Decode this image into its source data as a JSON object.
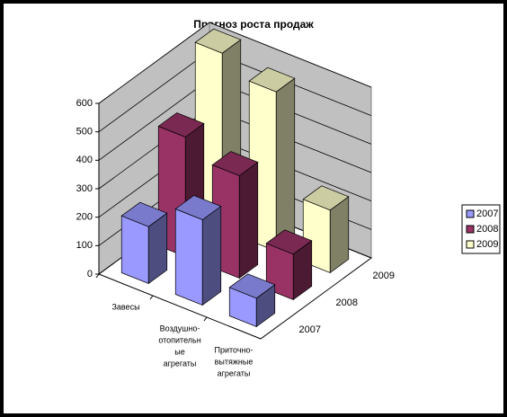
{
  "chart_data": {
    "type": "bar3d",
    "title": "Прогноз роста продаж",
    "categories": [
      [
        "Завесы"
      ],
      [
        "Воздушно-",
        "отопительн",
        "ые",
        "агрегаты"
      ],
      [
        "Приточно-",
        "вытяжные",
        "агрегаты"
      ]
    ],
    "series": [
      {
        "name": "2007",
        "color": "#9999ff",
        "values": [
          200,
          300,
          100
        ]
      },
      {
        "name": "2008",
        "color": "#993366",
        "values": [
          420,
          360,
          160
        ]
      },
      {
        "name": "2009",
        "color": "#ffffcc",
        "values": [
          620,
          560,
          220
        ]
      }
    ],
    "ylim": [
      0,
      600
    ],
    "yticks": [
      0,
      100,
      200,
      300,
      400,
      500,
      600
    ],
    "grid": true,
    "legend": "right"
  }
}
